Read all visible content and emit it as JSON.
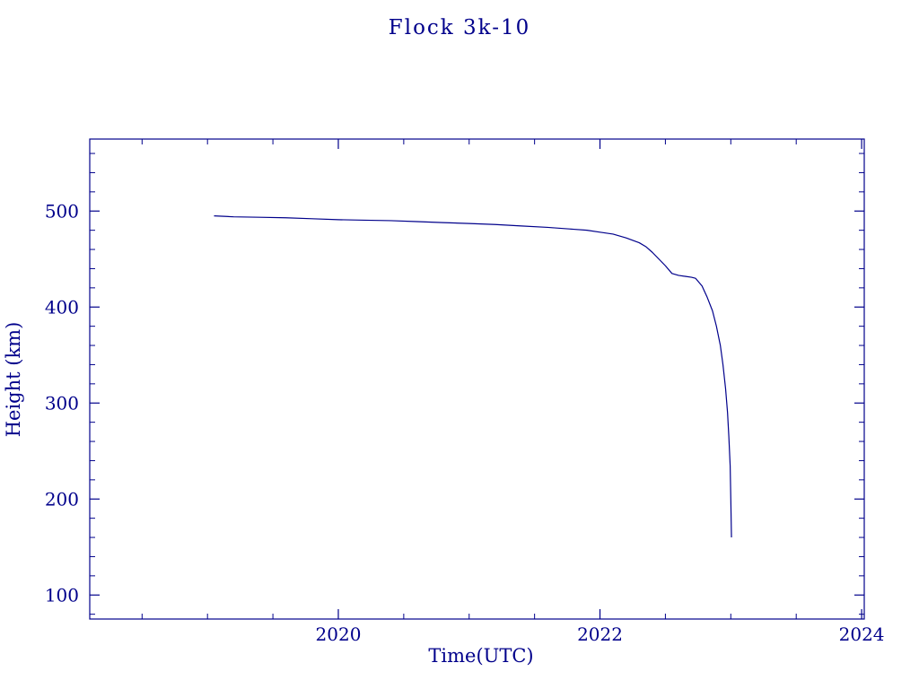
{
  "chart_data": {
    "type": "line",
    "title": "Flock 3k-10",
    "xlabel": "Time(UTC)",
    "ylabel": "Height (km)",
    "xlim": [
      2018.1,
      2024.02
    ],
    "ylim": [
      75,
      575
    ],
    "xticks": [
      2020,
      2022,
      2024
    ],
    "yticks": [
      100,
      200,
      300,
      400,
      500
    ],
    "x_minor_step": 0.5,
    "y_minor_step": 20,
    "grid": false,
    "legend_position": "none",
    "line_color": "#00008B",
    "axis_color": "#00008B",
    "background": "#FFFFFF",
    "series": [
      {
        "name": "Flock 3k-10 height",
        "points": [
          [
            2019.05,
            495
          ],
          [
            2019.2,
            494
          ],
          [
            2019.4,
            493.5
          ],
          [
            2019.6,
            493
          ],
          [
            2019.8,
            492
          ],
          [
            2020.0,
            491
          ],
          [
            2020.2,
            490.5
          ],
          [
            2020.4,
            490
          ],
          [
            2020.6,
            489
          ],
          [
            2020.8,
            488
          ],
          [
            2021.0,
            487
          ],
          [
            2021.2,
            486
          ],
          [
            2021.4,
            484.5
          ],
          [
            2021.6,
            483
          ],
          [
            2021.8,
            481
          ],
          [
            2021.9,
            480
          ],
          [
            2022.0,
            478
          ],
          [
            2022.1,
            476
          ],
          [
            2022.2,
            472
          ],
          [
            2022.3,
            467
          ],
          [
            2022.35,
            463
          ],
          [
            2022.4,
            457
          ],
          [
            2022.45,
            450
          ],
          [
            2022.5,
            443
          ],
          [
            2022.55,
            435
          ],
          [
            2022.6,
            433
          ],
          [
            2022.65,
            432
          ],
          [
            2022.7,
            431
          ],
          [
            2022.73,
            430
          ],
          [
            2022.78,
            422
          ],
          [
            2022.82,
            410
          ],
          [
            2022.86,
            396
          ],
          [
            2022.89,
            380
          ],
          [
            2022.92,
            360
          ],
          [
            2022.94,
            340
          ],
          [
            2022.96,
            315
          ],
          [
            2022.975,
            290
          ],
          [
            2022.985,
            265
          ],
          [
            2022.995,
            235
          ],
          [
            2023.0,
            200
          ],
          [
            2023.005,
            160
          ]
        ]
      }
    ]
  }
}
